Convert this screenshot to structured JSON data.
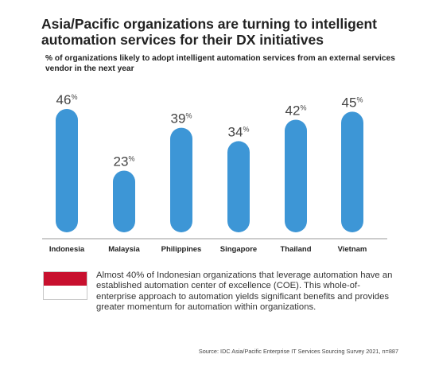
{
  "header": {
    "title": "Asia/Pacific organizations are turning to intelligent automation services for their DX initiatives",
    "subtitle": "% of organizations likely to adopt intelligent automation services from an external services vendor in the next year"
  },
  "chart_data": {
    "type": "bar",
    "categories": [
      "Indonesia",
      "Malaysia",
      "Philippines",
      "Singapore",
      "Thailand",
      "Vietnam"
    ],
    "values": [
      46,
      23,
      39,
      34,
      42,
      45
    ],
    "value_suffix": "%",
    "title": "% of organizations likely to adopt intelligent automation services from an external services vendor in the next year",
    "xlabel": "",
    "ylabel": "",
    "ylim": [
      0,
      50
    ],
    "grid": false,
    "legend": "none",
    "bar_color": "#3d96d6"
  },
  "callout": {
    "flag_icon": "indonesia-flag-icon",
    "flag_colors": [
      "#c8102e",
      "#ffffff"
    ],
    "text": "Almost 40% of Indonesian organizations that leverage automation have an established automation center of excellence (COE). This whole-of-enterprise approach to automation yields significant benefits and provides greater momentum for automation within organizations."
  },
  "footer": {
    "source": "Source: IDC Asia/Pacific Enterprise IT Services Sourcing Survey 2021, n=887"
  }
}
